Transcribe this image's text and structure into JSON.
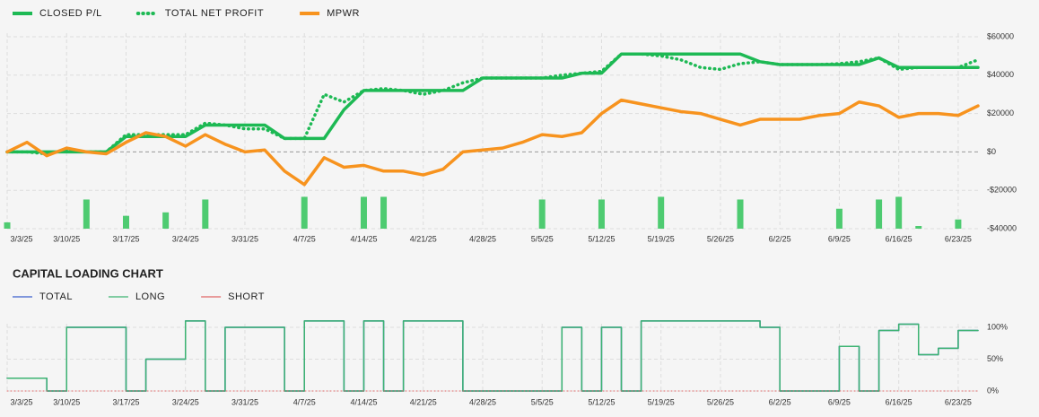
{
  "chart_data": [
    {
      "type": "line",
      "x": [
        "3/3/25",
        "3/5/25",
        "3/7/25",
        "3/10/25",
        "3/12/25",
        "3/14/25",
        "3/17/25",
        "3/19/25",
        "3/21/25",
        "3/24/25",
        "3/26/25",
        "3/28/25",
        "3/31/25",
        "4/2/25",
        "4/4/25",
        "4/7/25",
        "4/9/25",
        "4/11/25",
        "4/14/25",
        "4/16/25",
        "4/18/25",
        "4/21/25",
        "4/23/25",
        "4/25/25",
        "4/28/25",
        "4/30/25",
        "5/2/25",
        "5/5/25",
        "5/7/25",
        "5/9/25",
        "5/12/25",
        "5/14/25",
        "5/16/25",
        "5/19/25",
        "5/21/25",
        "5/23/25",
        "5/26/25",
        "5/28/25",
        "5/30/25",
        "6/2/25",
        "6/4/25",
        "6/6/25",
        "6/9/25",
        "6/11/25",
        "6/13/25",
        "6/16/25",
        "6/18/25",
        "6/20/25",
        "6/23/25",
        "6/25/25"
      ],
      "xticks": [
        "3/3/25",
        "3/10/25",
        "3/17/25",
        "3/24/25",
        "3/31/25",
        "4/7/25",
        "4/14/25",
        "4/21/25",
        "4/28/25",
        "5/5/25",
        "5/12/25",
        "5/19/25",
        "5/26/25",
        "6/2/25",
        "6/9/25",
        "6/16/25",
        "6/23/25"
      ],
      "series": [
        {
          "name": "CLOSED P/L",
          "color": "#1db954",
          "style": "solid",
          "values": [
            0,
            0,
            0,
            0,
            0,
            0,
            8000,
            8000,
            8000,
            8000,
            14000,
            14000,
            14000,
            14000,
            7000,
            7000,
            7000,
            22000,
            32000,
            32000,
            32000,
            32000,
            32000,
            32000,
            38500,
            38500,
            38500,
            38500,
            38500,
            41000,
            41000,
            51000,
            51000,
            51000,
            51000,
            51000,
            51000,
            51000,
            47000,
            45500,
            45500,
            45500,
            45500,
            45500,
            49000,
            44000,
            44000,
            44000,
            44000,
            44000
          ]
        },
        {
          "name": "TOTAL NET PROFIT",
          "color": "#1db954",
          "style": "dotted",
          "values": [
            0,
            0,
            -1000,
            1000,
            0,
            0,
            9000,
            9000,
            9000,
            9000,
            15000,
            14000,
            12000,
            12000,
            7000,
            7000,
            30000,
            26000,
            32000,
            33000,
            32000,
            30000,
            32000,
            36000,
            38500,
            38500,
            38500,
            38500,
            40000,
            41000,
            42000,
            51000,
            51000,
            50000,
            48000,
            44000,
            43000,
            46000,
            47000,
            45500,
            45500,
            45500,
            46000,
            47000,
            49000,
            43000,
            44000,
            44000,
            44000,
            48000
          ]
        },
        {
          "name": "MPWR",
          "color": "#f7931e",
          "style": "solid",
          "values": [
            0,
            5000,
            -2000,
            2000,
            0,
            -1000,
            5000,
            10000,
            8000,
            3000,
            9000,
            4000,
            0,
            1000,
            -10000,
            -17000,
            -3000,
            -8000,
            -7000,
            -10000,
            -10000,
            -12000,
            -9000,
            0,
            1000,
            2000,
            5000,
            9000,
            8000,
            10000,
            20000,
            27000,
            25000,
            23000,
            21000,
            20000,
            17000,
            14000,
            17000,
            17000,
            17000,
            19000,
            20000,
            26000,
            24000,
            18000,
            20000,
            20000,
            19000,
            24000
          ]
        }
      ],
      "bars": {
        "color": "#4ecb71",
        "values": [
          -36700,
          null,
          null,
          null,
          -24800,
          null,
          -33300,
          null,
          -31500,
          null,
          -24800,
          null,
          null,
          null,
          null,
          -23400,
          null,
          null,
          -23400,
          -23400,
          null,
          null,
          null,
          null,
          null,
          null,
          null,
          -24800,
          null,
          null,
          -24800,
          null,
          null,
          -23400,
          null,
          null,
          null,
          -24800,
          null,
          null,
          null,
          null,
          -29600,
          null,
          -24800,
          -23400,
          -38600,
          null,
          -35200,
          null
        ]
      },
      "ylim": [
        -40000,
        60000
      ],
      "yticks": [
        {
          "value": 60000,
          "label": "$60000"
        },
        {
          "value": 40000,
          "label": "$40000"
        },
        {
          "value": 20000,
          "label": "$20000"
        },
        {
          "value": 0,
          "label": "$0"
        },
        {
          "value": -20000,
          "label": "-$20000"
        },
        {
          "value": -40000,
          "label": "-$40000"
        }
      ],
      "grid": true
    },
    {
      "type": "step",
      "title": "CAPITAL LOADING CHART",
      "series": [
        {
          "name": "TOTAL",
          "color": "#3a5fcd",
          "style": "thin",
          "values": [
            20,
            20,
            0,
            100,
            100,
            100,
            0,
            50,
            50,
            110,
            0,
            100,
            100,
            100,
            0,
            110,
            110,
            0,
            110,
            0,
            110,
            110,
            110,
            0,
            0,
            0,
            0,
            0,
            100,
            0,
            100,
            0,
            110,
            110,
            110,
            110,
            110,
            110,
            100,
            0,
            0,
            0,
            70,
            0,
            95,
            105,
            57,
            67,
            95,
            95
          ]
        },
        {
          "name": "LONG",
          "color": "#3cb371",
          "style": "thin",
          "values": [
            20,
            20,
            0,
            100,
            100,
            100,
            0,
            50,
            50,
            110,
            0,
            100,
            100,
            100,
            0,
            110,
            110,
            0,
            110,
            0,
            110,
            110,
            110,
            0,
            0,
            0,
            0,
            0,
            100,
            0,
            100,
            0,
            110,
            110,
            110,
            110,
            110,
            110,
            100,
            0,
            0,
            0,
            70,
            0,
            95,
            105,
            57,
            67,
            95,
            95
          ]
        },
        {
          "name": "SHORT",
          "color": "#e06666",
          "style": "dotted",
          "values": [
            0,
            0,
            0,
            0,
            0,
            0,
            0,
            0,
            0,
            0,
            0,
            0,
            0,
            0,
            0,
            0,
            0,
            0,
            0,
            0,
            0,
            0,
            0,
            0,
            0,
            0,
            0,
            0,
            0,
            0,
            0,
            0,
            0,
            0,
            0,
            0,
            0,
            0,
            0,
            0,
            0,
            0,
            0,
            0,
            0,
            0,
            0,
            0,
            0,
            0
          ]
        }
      ],
      "ylim": [
        0,
        100
      ],
      "yticks": [
        {
          "value": 100,
          "label": "100%"
        },
        {
          "value": 50,
          "label": "50%"
        },
        {
          "value": 0,
          "label": "0%"
        }
      ],
      "grid": true
    }
  ]
}
